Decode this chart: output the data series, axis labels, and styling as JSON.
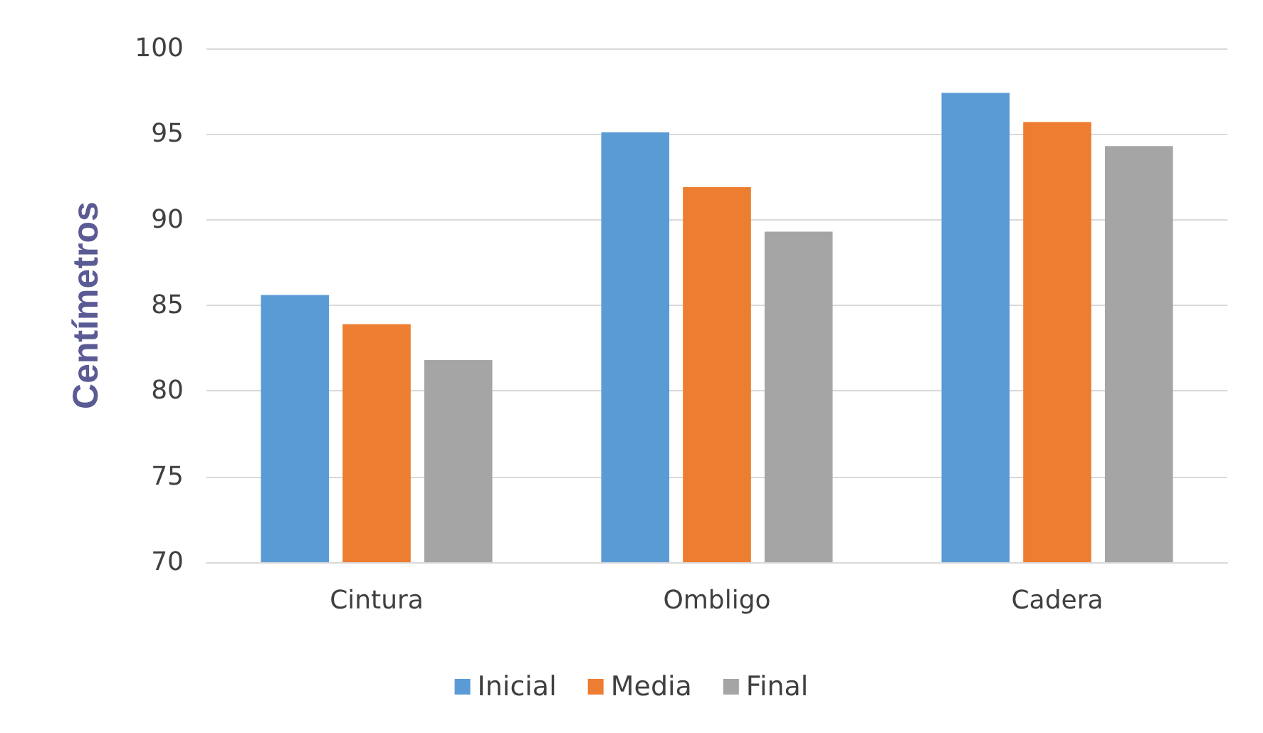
{
  "chart_data": {
    "type": "bar",
    "ylabel": "Centímetros",
    "categories": [
      "Cintura",
      "Ombligo",
      "Cadera"
    ],
    "series": [
      {
        "name": "Inicial",
        "color": "#5b9bd5",
        "values": [
          85.6,
          95.1,
          97.4
        ]
      },
      {
        "name": "Media",
        "color": "#ed7d31",
        "values": [
          83.9,
          91.9,
          95.7
        ]
      },
      {
        "name": "Final",
        "color": "#a5a5a5",
        "values": [
          81.8,
          89.3,
          94.3
        ]
      }
    ],
    "ylim": [
      70,
      100
    ],
    "yticks": [
      70,
      75,
      80,
      85,
      90,
      95,
      100
    ],
    "grid": "y",
    "legend": "bottom"
  }
}
